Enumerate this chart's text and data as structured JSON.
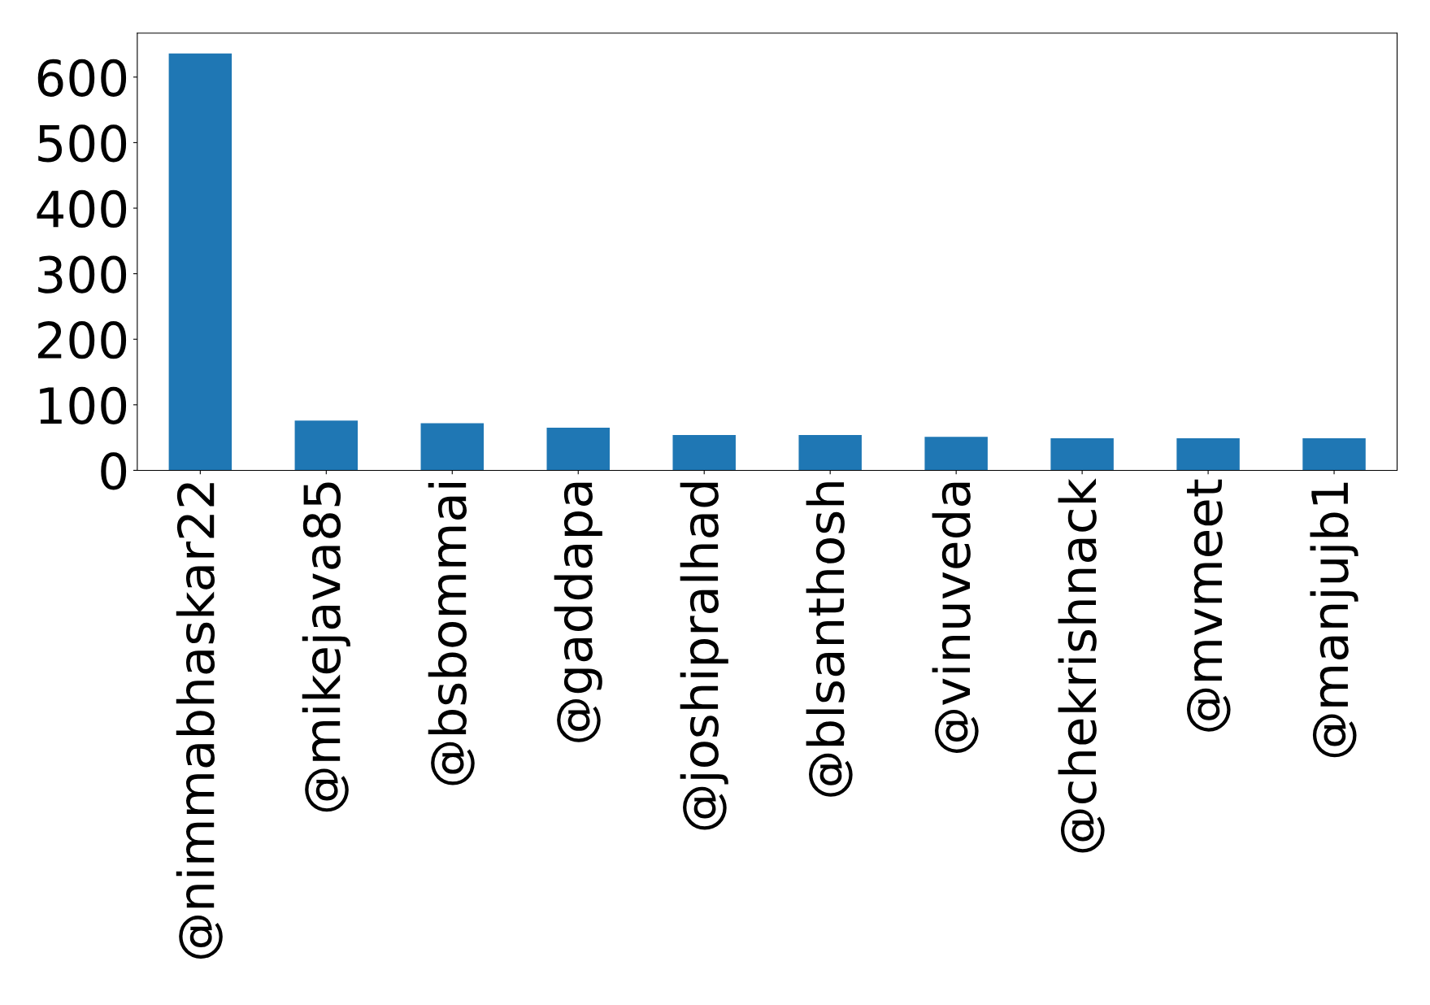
{
  "chart_data": {
    "type": "bar",
    "categories": [
      "@nimmabhaskar22",
      "@mikejava85",
      "@bsbommai",
      "@gaddapa",
      "@joshipralhad",
      "@blsanthosh",
      "@vinuveda",
      "@chekrishnack",
      "@mvmeet",
      "@manjujb1"
    ],
    "values": [
      636,
      76,
      72,
      65,
      54,
      54,
      51,
      49,
      49,
      49
    ],
    "color": "#1f77b4",
    "ylim": [
      0,
      667
    ],
    "yticks": [
      0,
      100,
      200,
      300,
      400,
      500,
      600
    ],
    "grid": false,
    "legend": false
  }
}
